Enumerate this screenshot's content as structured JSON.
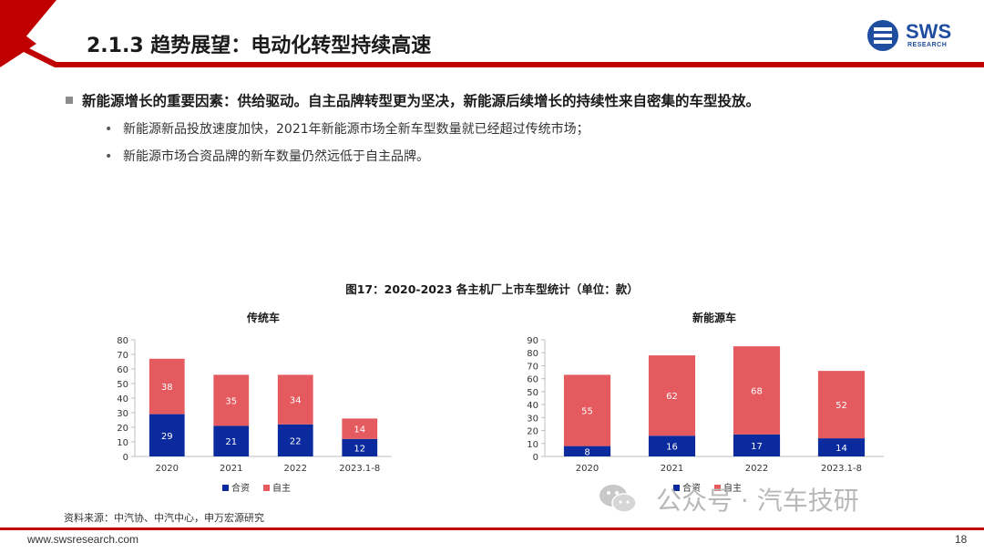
{
  "header": {
    "title": "2.1.3 趋势展望：电动化转型持续高速",
    "logo_text": "SWS",
    "logo_sub": "RESEARCH"
  },
  "content": {
    "headline": "新能源增长的重要因素：供给驱动。自主品牌转型更为坚决，新能源后续增长的持续性来自密集的车型投放。",
    "bullets": [
      "新能源新品投放速度加快，2021年新能源市场全新车型数量就已经超过传统市场；",
      "新能源市场合资品牌的新车数量仍然远低于自主品牌。"
    ]
  },
  "figure_title": "图17：2020-2023 各主机厂上市车型统计（单位：款）",
  "chart_data": [
    {
      "type": "bar",
      "stacked": true,
      "title": "传统车",
      "categories": [
        "2020",
        "2021",
        "2022",
        "2023.1-8"
      ],
      "series": [
        {
          "name": "合资",
          "values": [
            29,
            21,
            22,
            12
          ],
          "color": "#0b2a9e"
        },
        {
          "name": "自主",
          "values": [
            38,
            35,
            34,
            14
          ],
          "color": "#e45a5e"
        }
      ],
      "ylim": [
        0,
        80
      ],
      "yticks": [
        0,
        10,
        20,
        30,
        40,
        50,
        60,
        70,
        80
      ],
      "legend": "bottom",
      "grid": false
    },
    {
      "type": "bar",
      "stacked": true,
      "title": "新能源车",
      "categories": [
        "2020",
        "2021",
        "2022",
        "2023.1-8"
      ],
      "series": [
        {
          "name": "合资",
          "values": [
            8,
            16,
            17,
            14
          ],
          "color": "#0b2a9e"
        },
        {
          "name": "自主",
          "values": [
            55,
            62,
            68,
            52
          ],
          "color": "#e45a5e"
        }
      ],
      "ylim": [
        0,
        90
      ],
      "yticks": [
        0,
        10,
        20,
        30,
        40,
        50,
        60,
        70,
        80,
        90
      ],
      "legend": "bottom",
      "grid": false
    }
  ],
  "source": "资料来源：中汽协、中汽中心，申万宏源研究",
  "watermark": "公众号 · 汽车技研",
  "footer": {
    "url": "www.swsresearch.com",
    "page": "18"
  },
  "colors": {
    "brand_red": "#c00000",
    "brand_blue": "#1f4ea0"
  }
}
